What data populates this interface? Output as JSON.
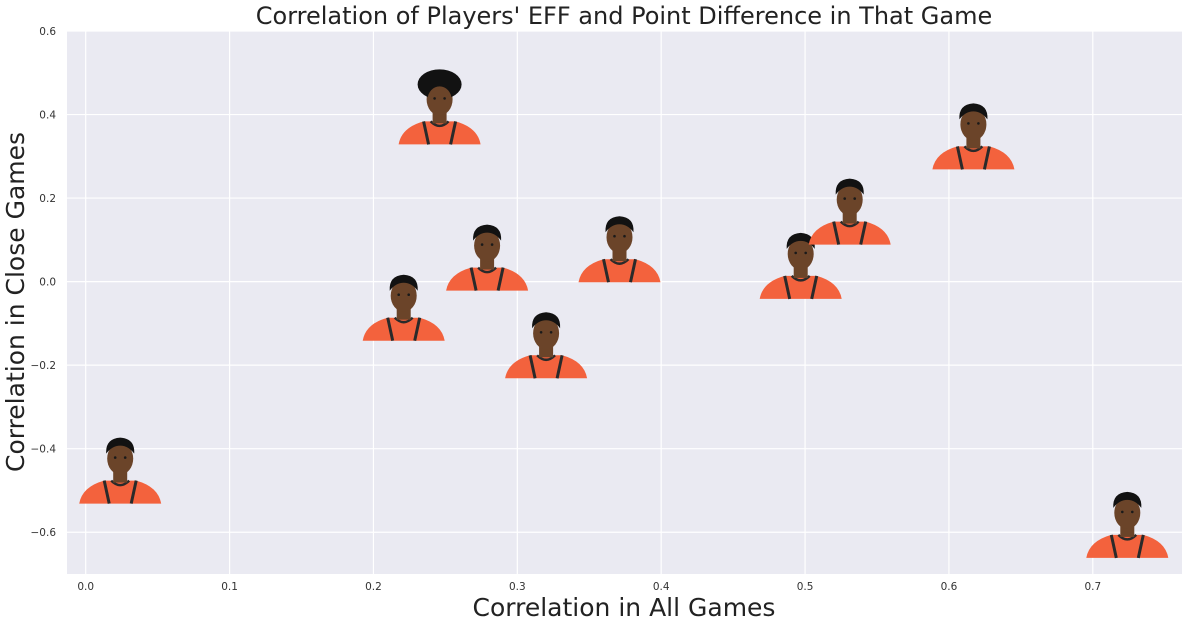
{
  "chart_data": {
    "type": "scatter",
    "title": "Correlation of Players' EFF and Point Difference in That Game",
    "xlabel": "Correlation in All Games",
    "ylabel": "Correlation in Close Games",
    "xlim": [
      -0.013,
      0.762
    ],
    "ylim": [
      -0.7,
      0.6
    ],
    "xticks": [
      0.0,
      0.1,
      0.2,
      0.3,
      0.4,
      0.5,
      0.6,
      0.7
    ],
    "xtick_labels": [
      "0.0",
      "0.1",
      "0.2",
      "0.3",
      "0.4",
      "0.5",
      "0.6",
      "0.7"
    ],
    "yticks": [
      -0.6,
      -0.4,
      -0.2,
      0.0,
      0.2,
      0.4,
      0.6
    ],
    "ytick_labels": [
      "−0.6",
      "−0.4",
      "−0.2",
      "0.0",
      "0.2",
      "0.4",
      "0.6"
    ],
    "grid": true,
    "marker": "player-headshot",
    "colors": {
      "plot_bg": "#eaeaf2",
      "grid": "#ffffff",
      "jersey": "#f3623d",
      "jersey_trim": "#2a2a2a",
      "skin": "#6b4429",
      "hair": "#121212"
    },
    "points": [
      {
        "x": 0.024,
        "y": -0.45
      },
      {
        "x": 0.221,
        "y": -0.06
      },
      {
        "x": 0.246,
        "y": 0.41
      },
      {
        "x": 0.279,
        "y": 0.06
      },
      {
        "x": 0.32,
        "y": -0.15
      },
      {
        "x": 0.371,
        "y": 0.08
      },
      {
        "x": 0.497,
        "y": 0.04
      },
      {
        "x": 0.531,
        "y": 0.17
      },
      {
        "x": 0.617,
        "y": 0.35
      },
      {
        "x": 0.724,
        "y": -0.58
      }
    ]
  }
}
